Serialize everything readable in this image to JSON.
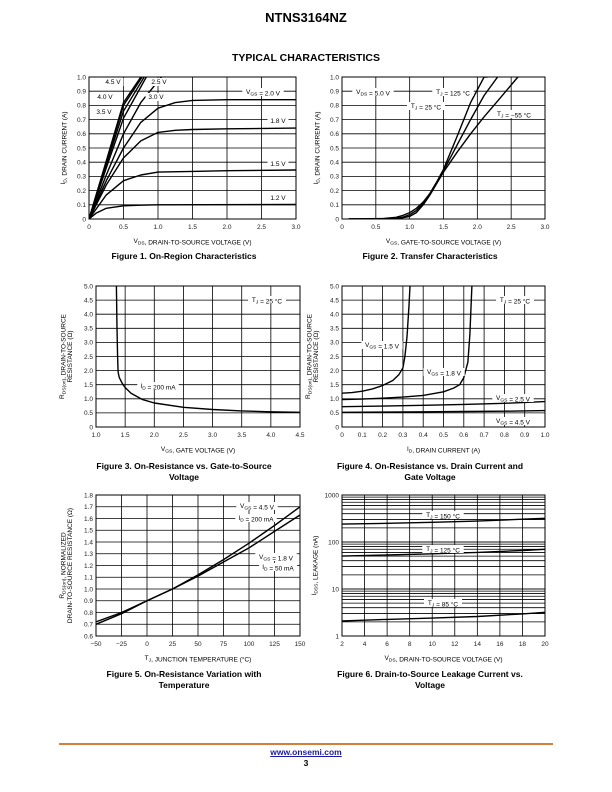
{
  "page": {
    "doc_title": "NTNS3164NZ",
    "section_title": "TYPICAL CHARACTERISTICS",
    "footer_link": "www.onsemi.com",
    "page_number": "3",
    "accent_color": "#d5803a"
  },
  "chart_data": [
    {
      "id": "fig1",
      "type": "line",
      "caption": [
        "Figure 1. On-Region Characteristics"
      ],
      "xlabel": "V_DS, DRAIN-TO-SOURCE VOLTAGE (V)",
      "ylabel": "I_D, DRAIN CURRENT (A)",
      "xlim": [
        0,
        3.0
      ],
      "ylim": [
        0,
        1.0
      ],
      "xticks": [
        0,
        0.5,
        1.0,
        1.5,
        2.0,
        2.5,
        3.0
      ],
      "xtick_labels": [
        "0",
        "0.5",
        "1.0",
        "1.5",
        "2.0",
        "2.5",
        "3.0"
      ],
      "yticks": [
        0,
        0.1,
        0.2,
        0.3,
        0.4,
        0.5,
        0.6,
        0.7,
        0.8,
        0.9,
        1.0
      ],
      "ytick_labels": [
        "0",
        "0.1",
        "0.2",
        "0.3",
        "0.4",
        "0.5",
        "0.6",
        "0.7",
        "0.8",
        "0.9",
        "1.0"
      ],
      "grid": true,
      "series": [
        {
          "name": "V_GS = 4.5 V",
          "x": [
            0,
            0.25,
            0.5,
            0.75
          ],
          "y": [
            0,
            0.41,
            0.82,
            1.0
          ]
        },
        {
          "name": "V_GS = 4.0 V",
          "x": [
            0,
            0.25,
            0.5,
            0.77
          ],
          "y": [
            0,
            0.4,
            0.8,
            1.0
          ]
        },
        {
          "name": "V_GS = 3.5 V",
          "x": [
            0,
            0.25,
            0.5,
            0.8
          ],
          "y": [
            0,
            0.38,
            0.76,
            1.0
          ]
        },
        {
          "name": "V_GS = 3.0 V",
          "x": [
            0,
            0.25,
            0.5,
            0.83
          ],
          "y": [
            0,
            0.36,
            0.71,
            1.0
          ]
        },
        {
          "name": "V_GS = 2.5 V",
          "x": [
            0,
            0.25,
            0.5,
            0.75,
            1.05
          ],
          "y": [
            0,
            0.31,
            0.6,
            0.82,
            1.0
          ]
        },
        {
          "name": "V_GS = 2.0 V",
          "x": [
            0,
            0.25,
            0.5,
            0.75,
            1.0,
            1.25,
            1.5,
            2.0,
            3.0
          ],
          "y": [
            0,
            0.27,
            0.5,
            0.68,
            0.78,
            0.82,
            0.835,
            0.84,
            0.84
          ]
        },
        {
          "name": "V_GS = 1.8 V",
          "x": [
            0,
            0.25,
            0.5,
            0.75,
            1.0,
            1.25,
            1.5,
            2.0,
            3.0
          ],
          "y": [
            0,
            0.24,
            0.43,
            0.55,
            0.61,
            0.625,
            0.63,
            0.635,
            0.64
          ]
        },
        {
          "name": "V_GS = 1.5 V",
          "x": [
            0,
            0.25,
            0.5,
            0.75,
            1.0,
            1.5,
            2.0,
            3.0
          ],
          "y": [
            0,
            0.17,
            0.27,
            0.31,
            0.33,
            0.335,
            0.34,
            0.345
          ]
        },
        {
          "name": "V_GS = 1.2 V",
          "x": [
            0,
            0.1,
            0.25,
            0.5,
            0.75,
            1.0,
            3.0
          ],
          "y": [
            0,
            0.04,
            0.075,
            0.093,
            0.097,
            0.1,
            0.102
          ]
        }
      ],
      "annotations": [
        "4.5 V",
        "2.5 V",
        "4.0 V",
        "3.0 V",
        "3.5 V",
        "V_GS = 2.0 V",
        "1.8 V",
        "1.5 V",
        "1.2 V"
      ]
    },
    {
      "id": "fig2",
      "type": "line",
      "caption": [
        "Figure 2. Transfer Characteristics"
      ],
      "xlabel": "V_GS, GATE-TO-SOURCE VOLTAGE (V)",
      "ylabel": "I_D, DRAIN CURRENT (A)",
      "xlim": [
        0,
        3.0
      ],
      "ylim": [
        0,
        1.0
      ],
      "xticks": [
        0,
        0.5,
        1.0,
        1.5,
        2.0,
        2.5,
        3.0
      ],
      "xtick_labels": [
        "0",
        "0.5",
        "1.0",
        "1.5",
        "2.0",
        "2.5",
        "3.0"
      ],
      "yticks": [
        0,
        0.1,
        0.2,
        0.3,
        0.4,
        0.5,
        0.6,
        0.7,
        0.8,
        0.9,
        1.0
      ],
      "ytick_labels": [
        "0",
        "0.1",
        "0.2",
        "0.3",
        "0.4",
        "0.5",
        "0.6",
        "0.7",
        "0.8",
        "0.9",
        "1.0"
      ],
      "grid": true,
      "series": [
        {
          "name": "T_J = 125 °C",
          "x": [
            0.1,
            0.6,
            0.8,
            0.9,
            1.0,
            1.1,
            1.2,
            1.3,
            1.4,
            1.5,
            1.7,
            1.9,
            2.1,
            2.15
          ],
          "y": [
            0,
            0.003,
            0.012,
            0.025,
            0.045,
            0.075,
            0.12,
            0.18,
            0.26,
            0.35,
            0.58,
            0.82,
            1.0,
            1.0
          ]
        },
        {
          "name": "T_J = 25 °C",
          "x": [
            0.1,
            0.6,
            0.8,
            0.9,
            1.0,
            1.1,
            1.2,
            1.3,
            1.4,
            1.5,
            1.7,
            1.9,
            2.1,
            2.3
          ],
          "y": [
            0,
            0.001,
            0.006,
            0.013,
            0.03,
            0.06,
            0.11,
            0.18,
            0.26,
            0.34,
            0.52,
            0.7,
            0.87,
            1.0
          ]
        },
        {
          "name": "T_J = −55 °C",
          "x": [
            0.1,
            0.7,
            0.85,
            1.0,
            1.1,
            1.2,
            1.3,
            1.4,
            1.5,
            1.7,
            1.9,
            2.1,
            2.3,
            2.6
          ],
          "y": [
            0,
            0.001,
            0.005,
            0.018,
            0.045,
            0.1,
            0.17,
            0.25,
            0.33,
            0.47,
            0.6,
            0.72,
            0.83,
            1.0
          ]
        }
      ],
      "annotations": [
        "V_DS = 5.0 V",
        "T_J = 125 °C",
        "T_J = 25 °C",
        "T_J = −55 °C"
      ]
    },
    {
      "id": "fig3",
      "type": "line",
      "caption": [
        "Figure 3. On-Resistance vs. Gate-to-Source",
        "Voltage"
      ],
      "xlabel": "V_GS, GATE VOLTAGE (V)",
      "ylabel": [
        "R_DS(on), DRAIN-TO-SOURCE",
        "RESISTANCE (Ω)"
      ],
      "xlim": [
        1.0,
        4.5
      ],
      "ylim": [
        0,
        5.0
      ],
      "xticks": [
        1.0,
        1.5,
        2.0,
        2.5,
        3.0,
        3.5,
        4.0,
        4.5
      ],
      "xtick_labels": [
        "1.0",
        "1.5",
        "2.0",
        "2.5",
        "3.0",
        "3.5",
        "4.0",
        "4.5"
      ],
      "yticks": [
        0,
        0.5,
        1.0,
        1.5,
        2.0,
        2.5,
        3.0,
        3.5,
        4.0,
        4.5,
        5.0
      ],
      "ytick_labels": [
        "0",
        "0.5",
        "1.0",
        "1.5",
        "2.0",
        "2.5",
        "3.0",
        "3.5",
        "4.0",
        "4.5",
        "5.0"
      ],
      "grid": true,
      "series": [
        {
          "name": "I_D = 200 mA",
          "x": [
            1.35,
            1.36,
            1.37,
            1.38,
            1.4,
            1.45,
            1.5,
            1.6,
            1.8,
            2.0,
            2.5,
            3.0,
            3.5,
            4.0,
            4.5
          ],
          "y": [
            5.0,
            3.5,
            2.5,
            1.95,
            1.75,
            1.55,
            1.4,
            1.2,
            0.97,
            0.85,
            0.7,
            0.62,
            0.57,
            0.54,
            0.52
          ]
        }
      ],
      "annotations": [
        "T_J = 25 °C",
        "I_D = 200 mA"
      ]
    },
    {
      "id": "fig4",
      "type": "line",
      "caption": [
        "Figure 4. On-Resistance vs. Drain Current and",
        "Gate Voltage"
      ],
      "xlabel": "I_D, DRAIN CURRENT (A)",
      "ylabel": [
        "R_DS(on), DRAIN-TO-SOURCE",
        "RESISTANCE (Ω)"
      ],
      "xlim": [
        0,
        1.0
      ],
      "ylim": [
        0,
        5.0
      ],
      "xticks": [
        0,
        0.1,
        0.2,
        0.3,
        0.4,
        0.5,
        0.6,
        0.7,
        0.8,
        0.9,
        1.0
      ],
      "xtick_labels": [
        "0",
        "0.1",
        "0.2",
        "0.3",
        "0.4",
        "0.5",
        "0.6",
        "0.7",
        "0.8",
        "0.9",
        "1.0"
      ],
      "yticks": [
        0,
        0.5,
        1.0,
        1.5,
        2.0,
        2.5,
        3.0,
        3.5,
        4.0,
        4.5,
        5.0
      ],
      "ytick_labels": [
        "0",
        "0.5",
        "1.0",
        "1.5",
        "2.0",
        "2.5",
        "3.0",
        "3.5",
        "4.0",
        "4.5",
        "5.0"
      ],
      "grid": true,
      "series": [
        {
          "name": "V_GS = 1.5 V",
          "x": [
            0,
            0.05,
            0.1,
            0.15,
            0.2,
            0.25,
            0.28,
            0.3,
            0.31,
            0.32,
            0.33,
            0.335
          ],
          "y": [
            1.2,
            1.22,
            1.27,
            1.35,
            1.47,
            1.65,
            1.85,
            2.1,
            2.5,
            3.2,
            4.3,
            5.0
          ]
        },
        {
          "name": "V_GS = 1.8 V",
          "x": [
            0,
            0.1,
            0.2,
            0.3,
            0.4,
            0.5,
            0.55,
            0.58,
            0.6,
            0.62,
            0.63,
            0.64
          ],
          "y": [
            0.97,
            0.99,
            1.02,
            1.06,
            1.12,
            1.25,
            1.38,
            1.5,
            1.75,
            2.3,
            3.3,
            5.0
          ]
        },
        {
          "name": "V_GS = 2.5 V",
          "x": [
            0,
            0.2,
            0.4,
            0.6,
            0.8,
            1.0
          ],
          "y": [
            0.72,
            0.74,
            0.77,
            0.8,
            0.84,
            0.9
          ]
        },
        {
          "name": "V_GS = 4.5 V",
          "x": [
            0,
            0.2,
            0.4,
            0.6,
            0.8,
            1.0
          ],
          "y": [
            0.52,
            0.53,
            0.54,
            0.55,
            0.56,
            0.58
          ]
        }
      ],
      "annotations": [
        "T_J = 25 °C",
        "V_GS = 1.5 V",
        "V_GS = 1.8 V",
        "V_GS = 2.5 V",
        "V_GS = 4.5 V"
      ]
    },
    {
      "id": "fig5",
      "type": "line",
      "caption": [
        "Figure 5. On-Resistance Variation with",
        "Temperature"
      ],
      "xlabel": "T_J, JUNCTION TEMPERATURE (°C)",
      "ylabel": [
        "R_DS(on), NORMALIZED",
        "DRAIN-TO-SOURCE RESISTANCE (Ω)"
      ],
      "xlim": [
        -50,
        150
      ],
      "ylim": [
        0.6,
        1.8
      ],
      "xticks": [
        -50,
        -25,
        0,
        25,
        50,
        75,
        100,
        125,
        150
      ],
      "xtick_labels": [
        "−50",
        "−25",
        "0",
        "25",
        "50",
        "75",
        "100",
        "125",
        "150"
      ],
      "yticks": [
        0.6,
        0.7,
        0.8,
        0.9,
        1.0,
        1.1,
        1.2,
        1.3,
        1.4,
        1.5,
        1.6,
        1.7,
        1.8
      ],
      "ytick_labels": [
        "0.6",
        "0.7",
        "0.8",
        "0.9",
        "1.0",
        "1.1",
        "1.2",
        "1.3",
        "1.4",
        "1.5",
        "1.6",
        "1.7",
        "1.8"
      ],
      "grid": true,
      "series": [
        {
          "name": "V_GS = 4.5 V, I_D = 200 mA",
          "x": [
            -50,
            -25,
            0,
            25,
            50,
            75,
            100,
            125,
            150
          ],
          "y": [
            0.7,
            0.79,
            0.9,
            1.0,
            1.12,
            1.25,
            1.39,
            1.54,
            1.7
          ]
        },
        {
          "name": "V_GS = 1.8 V, I_D = 50 mA",
          "x": [
            -50,
            -25,
            0,
            25,
            50,
            75,
            100,
            125,
            150
          ],
          "y": [
            0.72,
            0.8,
            0.9,
            1.0,
            1.11,
            1.23,
            1.35,
            1.49,
            1.63
          ]
        }
      ],
      "annotations": [
        "V_GS = 4.5 V",
        "I_D = 200 mA",
        "V_GS = 1.8 V",
        "I_D = 50 mA"
      ]
    },
    {
      "id": "fig6",
      "type": "line",
      "yscale": "log",
      "caption": [
        "Figure 6. Drain-to-Source Leakage Current vs.",
        "Voltage"
      ],
      "xlabel": "V_DS, DRAIN-TO-SOURCE VOLTAGE (V)",
      "ylabel": "I_DSS, LEAKAGE (nA)",
      "xlim": [
        2,
        20
      ],
      "ylim": [
        1,
        1000
      ],
      "xticks": [
        2,
        4,
        6,
        8,
        10,
        12,
        14,
        16,
        18,
        20
      ],
      "xtick_labels": [
        "2",
        "4",
        "6",
        "8",
        "10",
        "12",
        "14",
        "16",
        "18",
        "20"
      ],
      "yticks": [
        1,
        10,
        100,
        1000
      ],
      "ytick_labels": [
        "1",
        "10",
        "100",
        "1000"
      ],
      "grid": true,
      "series": [
        {
          "name": "T_J = 150 °C",
          "x": [
            2,
            6,
            10,
            14,
            18,
            20
          ],
          "y": [
            240,
            250,
            262,
            278,
            305,
            320
          ]
        },
        {
          "name": "T_J = 125 °C",
          "x": [
            2,
            6,
            10,
            14,
            18,
            20
          ],
          "y": [
            50,
            53,
            56,
            60,
            66,
            70
          ]
        },
        {
          "name": "T_J = 85 °C",
          "x": [
            2,
            6,
            10,
            14,
            18,
            20
          ],
          "y": [
            2.1,
            2.25,
            2.4,
            2.6,
            2.95,
            3.2
          ]
        }
      ],
      "annotations": [
        "T_J = 150 °C",
        "T_J = 125 °C",
        "T_J = 85 °C"
      ]
    }
  ]
}
